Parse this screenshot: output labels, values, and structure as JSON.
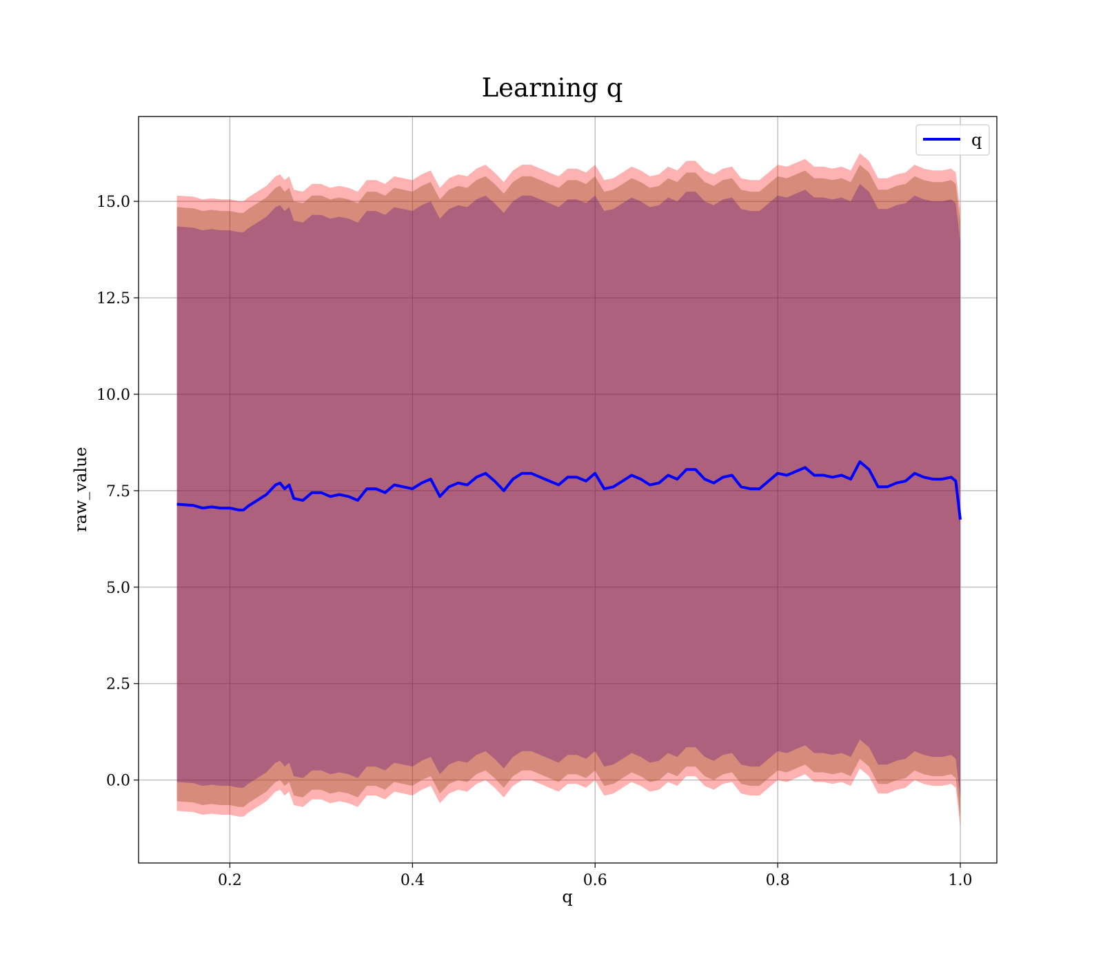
{
  "chart_data": {
    "type": "line",
    "title": "Learning q",
    "xlabel": "q",
    "ylabel": "raw_value",
    "xlim": [
      0.1,
      1.04
    ],
    "ylim": [
      -2.15,
      17.2
    ],
    "xticks": [
      0.2,
      0.4,
      0.6,
      0.8,
      1.0
    ],
    "xtick_labels": [
      "0.2",
      "0.4",
      "0.6",
      "0.8",
      "1.0"
    ],
    "yticks": [
      0.0,
      2.5,
      5.0,
      7.5,
      10.0,
      12.5,
      15.0
    ],
    "ytick_labels": [
      "0.0",
      "2.5",
      "5.0",
      "7.5",
      "10.0",
      "12.5",
      "15.0"
    ],
    "grid": true,
    "legend_position": "top-right",
    "series": [
      {
        "name": "q",
        "color": "#0000ff",
        "x": [
          0.142,
          0.16,
          0.17,
          0.18,
          0.19,
          0.2,
          0.21,
          0.215,
          0.22,
          0.23,
          0.24,
          0.25,
          0.255,
          0.26,
          0.265,
          0.27,
          0.28,
          0.29,
          0.3,
          0.31,
          0.32,
          0.33,
          0.34,
          0.35,
          0.36,
          0.37,
          0.38,
          0.39,
          0.4,
          0.41,
          0.42,
          0.43,
          0.44,
          0.45,
          0.46,
          0.47,
          0.48,
          0.49,
          0.5,
          0.51,
          0.52,
          0.53,
          0.54,
          0.55,
          0.56,
          0.57,
          0.58,
          0.59,
          0.6,
          0.61,
          0.62,
          0.63,
          0.64,
          0.65,
          0.66,
          0.67,
          0.68,
          0.69,
          0.7,
          0.71,
          0.72,
          0.73,
          0.74,
          0.75,
          0.76,
          0.77,
          0.78,
          0.79,
          0.8,
          0.81,
          0.82,
          0.83,
          0.84,
          0.85,
          0.86,
          0.87,
          0.88,
          0.89,
          0.9,
          0.91,
          0.92,
          0.93,
          0.94,
          0.95,
          0.96,
          0.97,
          0.98,
          0.99,
          0.995,
          1.0
        ],
        "y": [
          7.15,
          7.12,
          7.05,
          7.08,
          7.05,
          7.05,
          7.0,
          7.0,
          7.1,
          7.25,
          7.4,
          7.65,
          7.7,
          7.55,
          7.65,
          7.3,
          7.25,
          7.45,
          7.45,
          7.35,
          7.4,
          7.35,
          7.25,
          7.55,
          7.55,
          7.45,
          7.65,
          7.6,
          7.55,
          7.7,
          7.8,
          7.35,
          7.6,
          7.7,
          7.65,
          7.85,
          7.95,
          7.75,
          7.5,
          7.8,
          7.95,
          7.95,
          7.85,
          7.75,
          7.65,
          7.85,
          7.85,
          7.75,
          7.95,
          7.55,
          7.6,
          7.75,
          7.9,
          7.8,
          7.65,
          7.7,
          7.9,
          7.8,
          8.05,
          8.05,
          7.8,
          7.7,
          7.85,
          7.9,
          7.6,
          7.55,
          7.55,
          7.75,
          7.95,
          7.9,
          8.0,
          8.1,
          7.9,
          7.9,
          7.85,
          7.9,
          7.8,
          8.25,
          8.05,
          7.6,
          7.6,
          7.7,
          7.75,
          7.95,
          7.85,
          7.8,
          7.8,
          7.85,
          7.75,
          6.75
        ]
      }
    ],
    "bands": [
      {
        "color": "#ff0000",
        "opacity": 0.3,
        "lower_offset": -7.95,
        "upper_offset": 8.0
      },
      {
        "color": "#8b4513",
        "opacity": 0.35,
        "lower_offset": -7.7,
        "upper_offset": 7.7
      },
      {
        "color": "#4b0082",
        "opacity": 0.3,
        "lower_offset": -7.2,
        "upper_offset": 7.2
      }
    ]
  }
}
